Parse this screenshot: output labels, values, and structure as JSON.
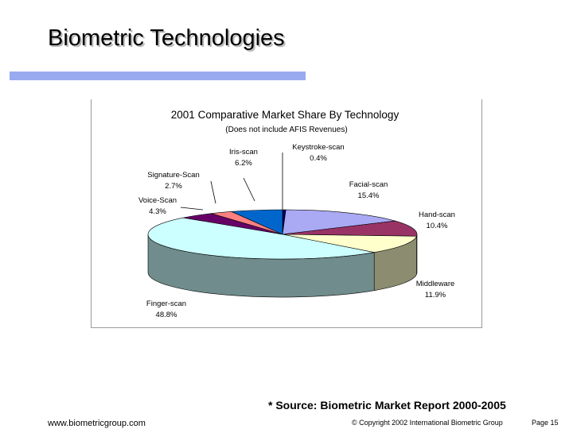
{
  "slide": {
    "title": "Biometric Technologies",
    "source": "* Source: Biometric Market Report 2000-2005",
    "website": "www.biometricgroup.com",
    "copyright": "© Copyright 2002 International Biometric Group",
    "page": "Page 15",
    "accent_color": "#9aaaf0"
  },
  "chart_data": {
    "type": "pie",
    "title": "2001 Comparative Market Share By Technology",
    "subtitle": "(Does not include AFIS Revenues)",
    "slices": [
      {
        "name": "Keystroke-scan",
        "label": "0.4%",
        "value": 0.4,
        "color": "#000066"
      },
      {
        "name": "Facial-scan",
        "label": "15.4%",
        "value": 15.4,
        "color": "#a9a9f4"
      },
      {
        "name": "Hand-scan",
        "label": "10.4%",
        "value": 10.4,
        "color": "#993366"
      },
      {
        "name": "Middleware",
        "label": "11.9%",
        "value": 11.9,
        "color": "#ffffcc"
      },
      {
        "name": "Finger-scan",
        "label": "48.8%",
        "value": 48.8,
        "color": "#ccffff"
      },
      {
        "name": "Voice-Scan",
        "label": "4.3%",
        "value": 4.3,
        "color": "#660066"
      },
      {
        "name": "Signature-Scan",
        "label": "2.7%",
        "value": 2.7,
        "color": "#ff8080"
      },
      {
        "name": "Iris-scan",
        "label": "6.2%",
        "value": 6.2,
        "color": "#0066cc"
      }
    ],
    "legend": "none",
    "labels": "outside with leader lines"
  }
}
